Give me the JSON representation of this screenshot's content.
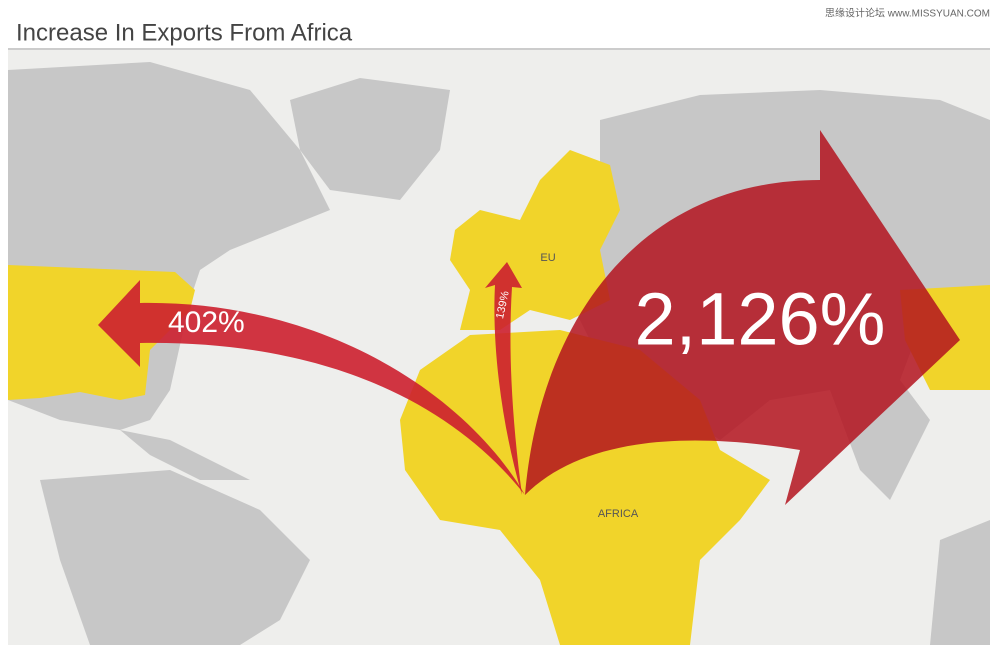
{
  "header": {
    "title": "Increase In Exports From Africa",
    "watermark": "思缘设计论坛 www.MISSYUAN.COM"
  },
  "map": {
    "regions": [
      "EU",
      "AFRICA"
    ],
    "arrows": [
      {
        "label": "402%"
      },
      {
        "label": "139%"
      },
      {
        "label": "2,126%"
      }
    ]
  }
}
